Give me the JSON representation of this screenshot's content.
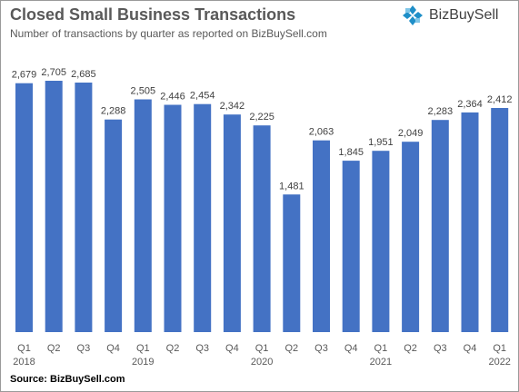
{
  "title": "Closed Small Business Transactions",
  "subtitle": "Number of transactions by quarter as reported on BizBuySell.com",
  "logo": {
    "text": "BizBuySell",
    "icon": "bizbuysell-logo-icon",
    "color": "#1f8fc8"
  },
  "source": "Source:  BizBuySell.com",
  "colors": {
    "bar": "#4472c4",
    "text": "#595959"
  },
  "chart_data": {
    "type": "bar",
    "categories": [
      "Q1",
      "Q2",
      "Q3",
      "Q4",
      "Q1",
      "Q2",
      "Q3",
      "Q4",
      "Q1",
      "Q2",
      "Q3",
      "Q4",
      "Q1",
      "Q2",
      "Q3",
      "Q4",
      "Q1"
    ],
    "year_labels": [
      "2018",
      "",
      "",
      "",
      "2019",
      "",
      "",
      "",
      "2020",
      "",
      "",
      "",
      "2021",
      "",
      "",
      "",
      "2022"
    ],
    "values": [
      2679,
      2705,
      2685,
      2288,
      2505,
      2446,
      2454,
      2342,
      2225,
      1481,
      2063,
      1845,
      1951,
      2049,
      2283,
      2364,
      2412
    ],
    "value_labels": [
      "2,679",
      "2,705",
      "2,685",
      "2,288",
      "2,505",
      "2,446",
      "2,454",
      "2,342",
      "2,225",
      "1,481",
      "2,063",
      "1,845",
      "1,951",
      "2,049",
      "2,283",
      "2,364",
      "2,412"
    ],
    "title": "Closed Small Business Transactions",
    "xlabel": "",
    "ylabel": "",
    "ylim": [
      0,
      2705
    ],
    "grid": false,
    "legend": "none"
  }
}
